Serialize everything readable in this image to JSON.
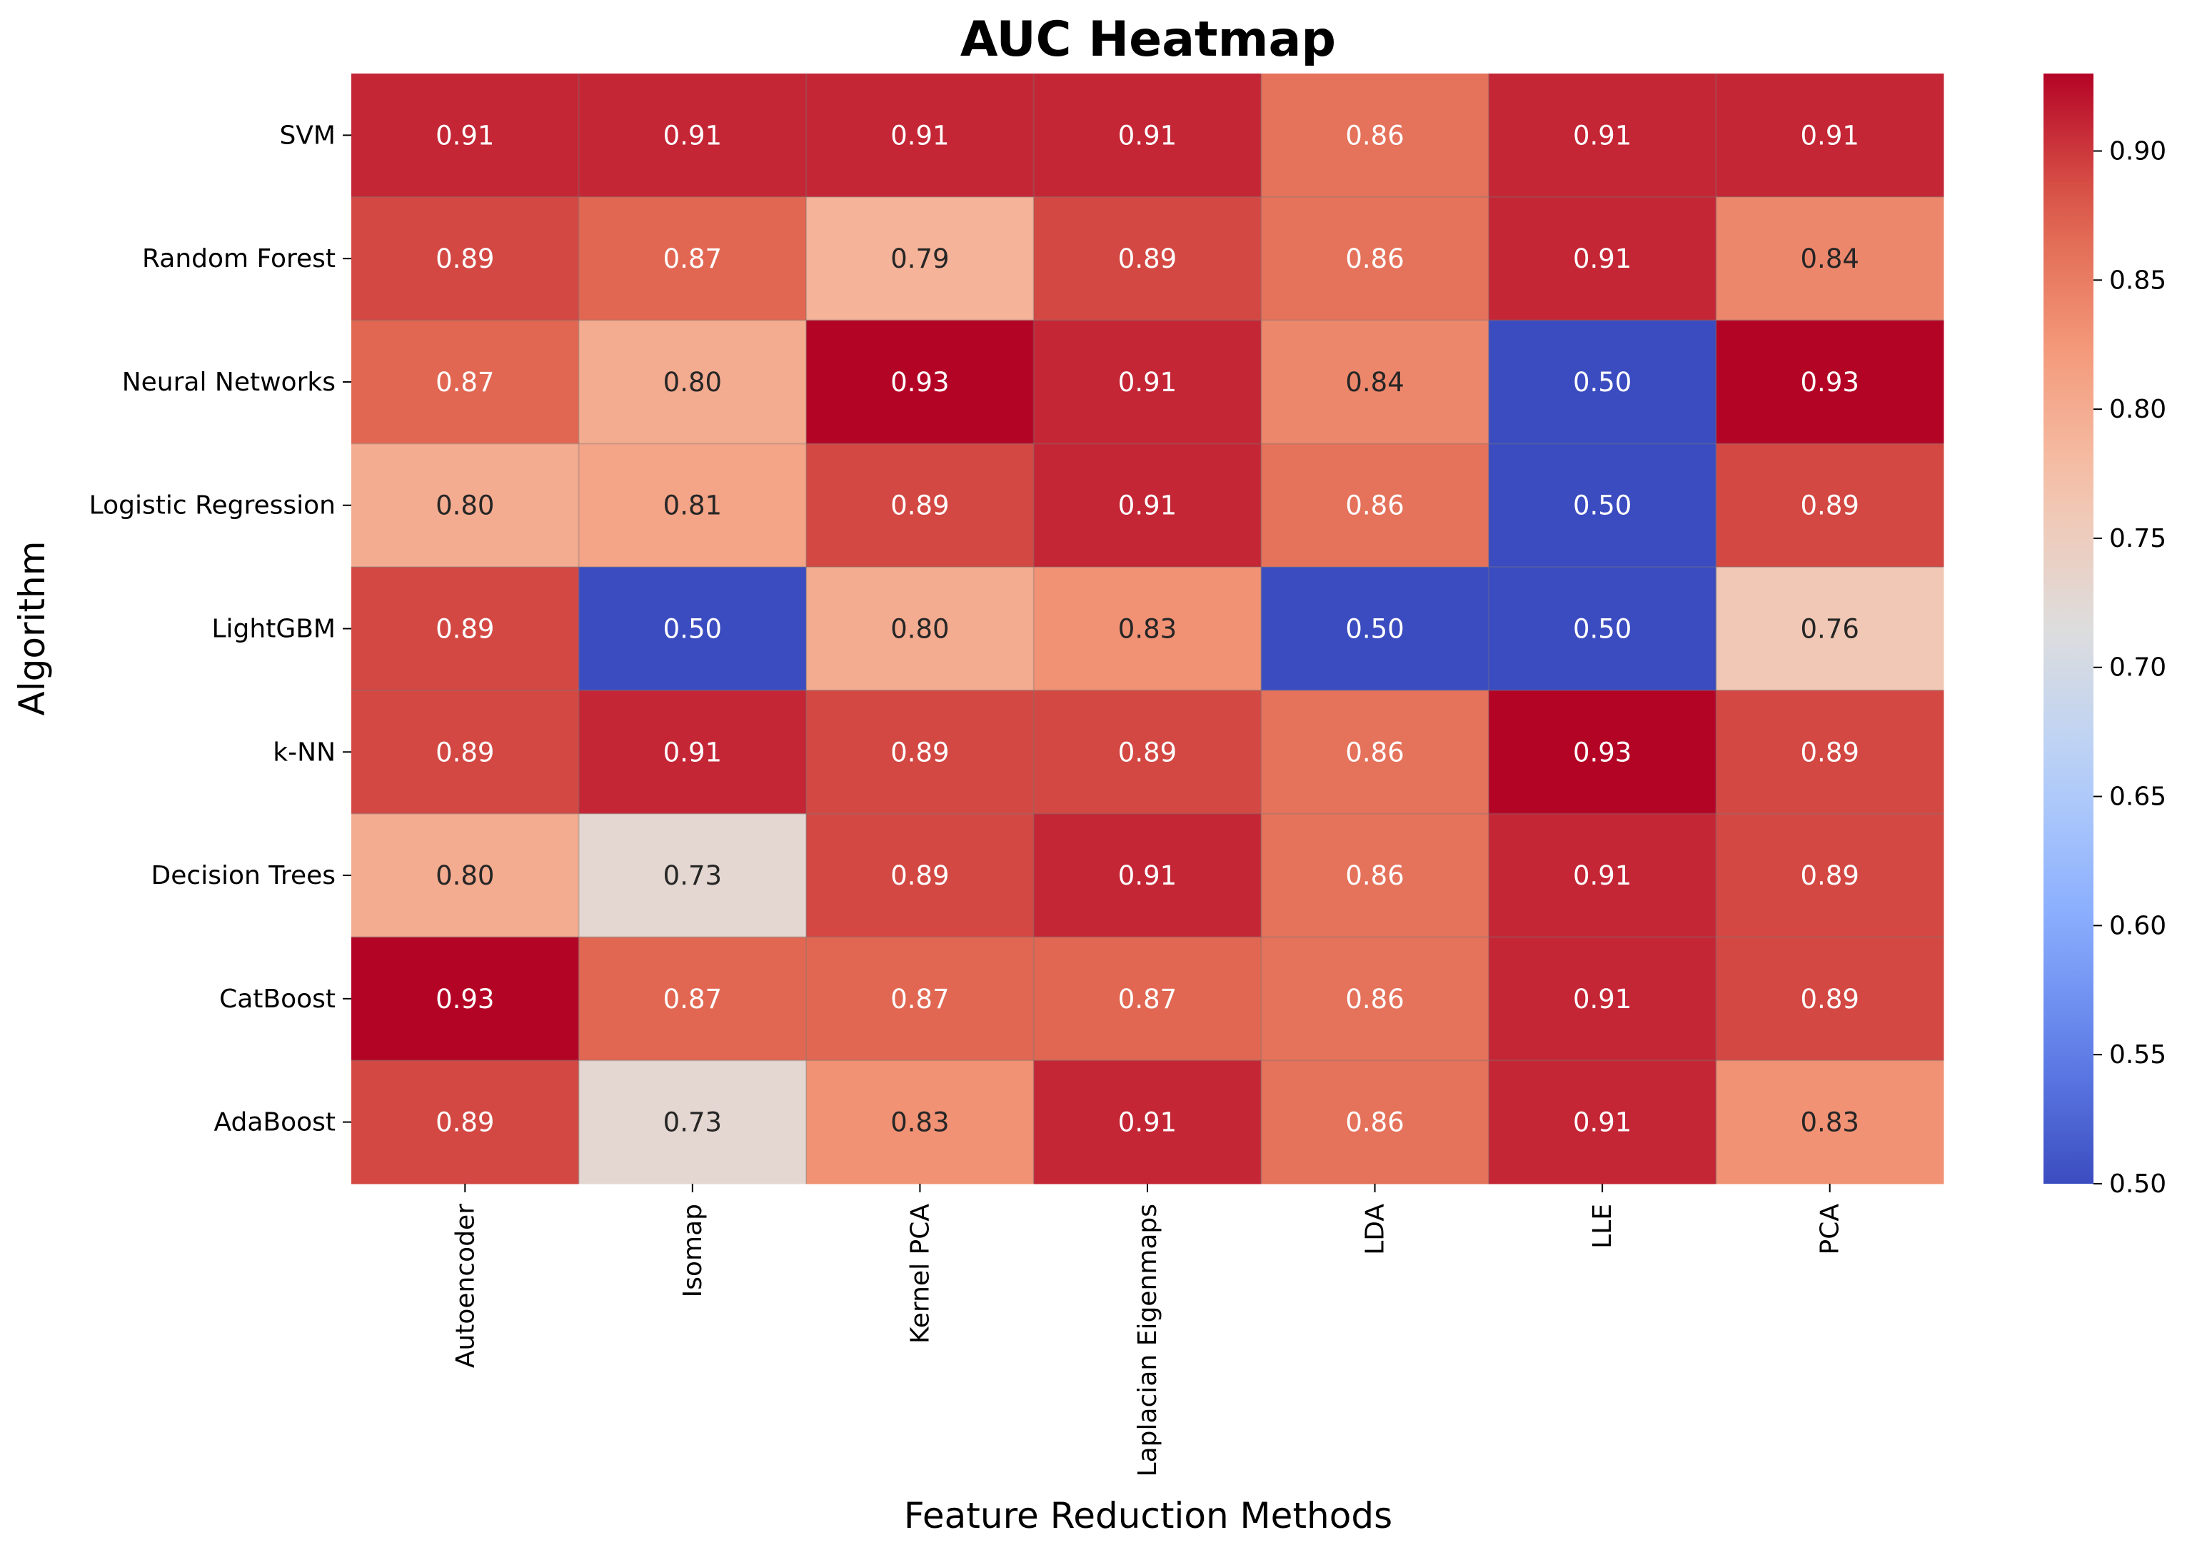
{
  "chart_data": {
    "type": "heatmap",
    "title": "AUC Heatmap",
    "xlabel": "Feature Reduction Methods",
    "ylabel": "Algorithm",
    "x_categories": [
      "Autoencoder",
      "Isomap",
      "Kernel PCA",
      "Laplacian Eigenmaps",
      "LDA",
      "LLE",
      "PCA"
    ],
    "y_categories": [
      "SVM",
      "Random Forest",
      "Neural Networks",
      "Logistic Regression",
      "LightGBM",
      "k-NN",
      "Decision Trees",
      "CatBoost",
      "AdaBoost"
    ],
    "values": [
      [
        0.91,
        0.91,
        0.91,
        0.91,
        0.86,
        0.91,
        0.91
      ],
      [
        0.89,
        0.87,
        0.79,
        0.89,
        0.86,
        0.91,
        0.84
      ],
      [
        0.87,
        0.8,
        0.93,
        0.91,
        0.84,
        0.5,
        0.93
      ],
      [
        0.8,
        0.81,
        0.89,
        0.91,
        0.86,
        0.5,
        0.89
      ],
      [
        0.89,
        0.5,
        0.8,
        0.83,
        0.5,
        0.5,
        0.76
      ],
      [
        0.89,
        0.91,
        0.89,
        0.89,
        0.86,
        0.93,
        0.89
      ],
      [
        0.8,
        0.73,
        0.89,
        0.91,
        0.86,
        0.91,
        0.89
      ],
      [
        0.93,
        0.87,
        0.87,
        0.87,
        0.86,
        0.91,
        0.89
      ],
      [
        0.89,
        0.73,
        0.83,
        0.91,
        0.86,
        0.91,
        0.83
      ]
    ],
    "colormap": "coolwarm",
    "vmin": 0.5,
    "vmax": 0.93,
    "colorbar_ticks": [
      "0.50",
      "0.55",
      "0.60",
      "0.65",
      "0.70",
      "0.75",
      "0.80",
      "0.85",
      "0.90"
    ],
    "grid": false,
    "legend": "colorbar-right"
  }
}
